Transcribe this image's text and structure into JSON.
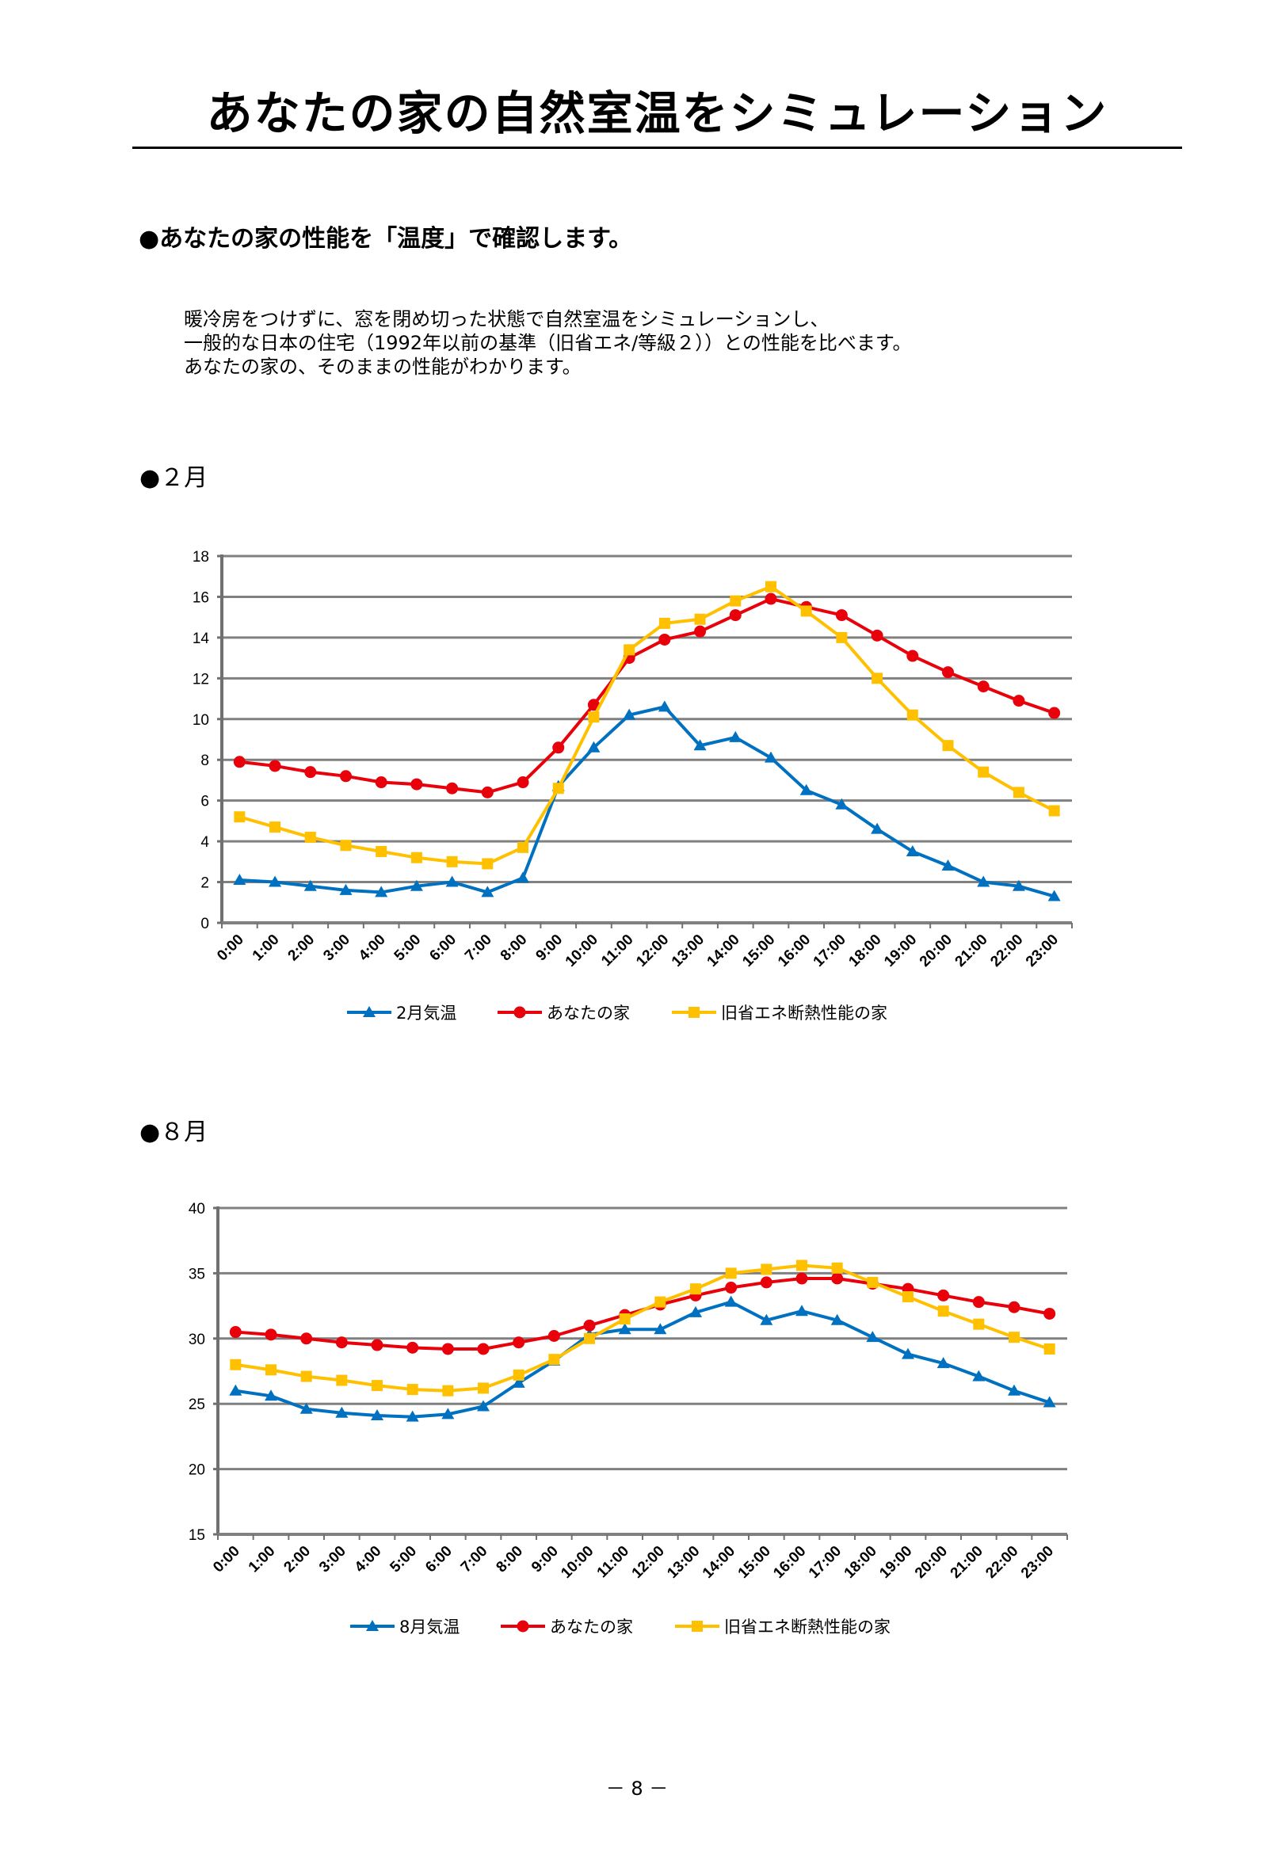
{
  "page": {
    "title": "あなたの家の自然室温をシミュレーション",
    "section_heading": "●あなたの家の性能を「温度」で確認します。",
    "body_lines": [
      "暖冷房をつけずに、窓を閉め切った状態で自然室温をシミュレーションし、",
      "一般的な日本の住宅（1992年以前の基準（旧省エネ/等級２））との性能を比べます。",
      "あなたの家の、そのままの性能がわかります。"
    ],
    "feb_heading": "●２月",
    "aug_heading": "●８月",
    "page_number": "－ 8 －"
  },
  "chart_data": [
    {
      "type": "line",
      "title": "2月",
      "xlabel": "",
      "ylabel": "",
      "ylim": [
        0,
        18
      ],
      "yticks": [
        0,
        2,
        4,
        6,
        8,
        10,
        12,
        14,
        16,
        18
      ],
      "grid": true,
      "legend": "bottom",
      "categories": [
        "0:00",
        "1:00",
        "2:00",
        "3:00",
        "4:00",
        "5:00",
        "6:00",
        "7:00",
        "8:00",
        "9:00",
        "10:00",
        "11:00",
        "12:00",
        "13:00",
        "14:00",
        "15:00",
        "16:00",
        "17:00",
        "18:00",
        "19:00",
        "20:00",
        "21:00",
        "22:00",
        "23:00"
      ],
      "series": [
        {
          "name": "2月気温",
          "color": "#0070C0",
          "marker": "triangle",
          "values": [
            2.1,
            2.0,
            1.8,
            1.6,
            1.5,
            1.8,
            2.0,
            1.5,
            2.2,
            6.7,
            8.6,
            10.2,
            10.6,
            8.7,
            9.1,
            8.1,
            6.5,
            5.8,
            4.6,
            3.5,
            2.8,
            2.0,
            1.8,
            1.3
          ]
        },
        {
          "name": "あなたの家",
          "color": "#E8000B",
          "marker": "circle",
          "values": [
            7.9,
            7.7,
            7.4,
            7.2,
            6.9,
            6.8,
            6.6,
            6.4,
            6.9,
            8.6,
            10.7,
            13.0,
            13.9,
            14.3,
            15.1,
            15.9,
            15.5,
            15.1,
            14.1,
            13.1,
            12.3,
            11.6,
            10.9,
            10.3
          ]
        },
        {
          "name": "旧省エネ断熱性能の家",
          "color": "#FFC000",
          "marker": "square",
          "values": [
            5.2,
            4.7,
            4.2,
            3.8,
            3.5,
            3.2,
            3.0,
            2.9,
            3.7,
            6.6,
            10.1,
            13.4,
            14.7,
            14.9,
            15.8,
            16.5,
            15.3,
            14.0,
            12.0,
            10.2,
            8.7,
            7.4,
            6.4,
            5.5
          ]
        }
      ]
    },
    {
      "type": "line",
      "title": "8月",
      "xlabel": "",
      "ylabel": "",
      "ylim": [
        15,
        40
      ],
      "yticks": [
        15,
        20,
        25,
        30,
        35,
        40
      ],
      "grid": true,
      "legend": "bottom",
      "categories": [
        "0:00",
        "1:00",
        "2:00",
        "3:00",
        "4:00",
        "5:00",
        "6:00",
        "7:00",
        "8:00",
        "9:00",
        "10:00",
        "11:00",
        "12:00",
        "13:00",
        "14:00",
        "15:00",
        "16:00",
        "17:00",
        "18:00",
        "19:00",
        "20:00",
        "21:00",
        "22:00",
        "23:00"
      ],
      "series": [
        {
          "name": "8月気温",
          "color": "#0070C0",
          "marker": "triangle",
          "values": [
            26.0,
            25.6,
            24.6,
            24.3,
            24.1,
            24.0,
            24.2,
            24.8,
            26.6,
            28.3,
            30.3,
            30.7,
            30.7,
            32.0,
            32.8,
            31.4,
            32.1,
            31.4,
            30.1,
            28.8,
            28.1,
            27.1,
            26.0,
            25.1
          ]
        },
        {
          "name": "あなたの家",
          "color": "#E8000B",
          "marker": "circle",
          "values": [
            30.5,
            30.3,
            30.0,
            29.7,
            29.5,
            29.3,
            29.2,
            29.2,
            29.7,
            30.2,
            31.0,
            31.8,
            32.6,
            33.3,
            33.9,
            34.3,
            34.6,
            34.6,
            34.2,
            33.8,
            33.3,
            32.8,
            32.4,
            31.9
          ]
        },
        {
          "name": "旧省エネ断熱性能の家",
          "color": "#FFC000",
          "marker": "square",
          "values": [
            28.0,
            27.6,
            27.1,
            26.8,
            26.4,
            26.1,
            26.0,
            26.2,
            27.2,
            28.4,
            30.0,
            31.5,
            32.8,
            33.8,
            35.0,
            35.3,
            35.6,
            35.4,
            34.3,
            33.2,
            32.1,
            31.1,
            30.1,
            29.2
          ]
        }
      ]
    }
  ]
}
